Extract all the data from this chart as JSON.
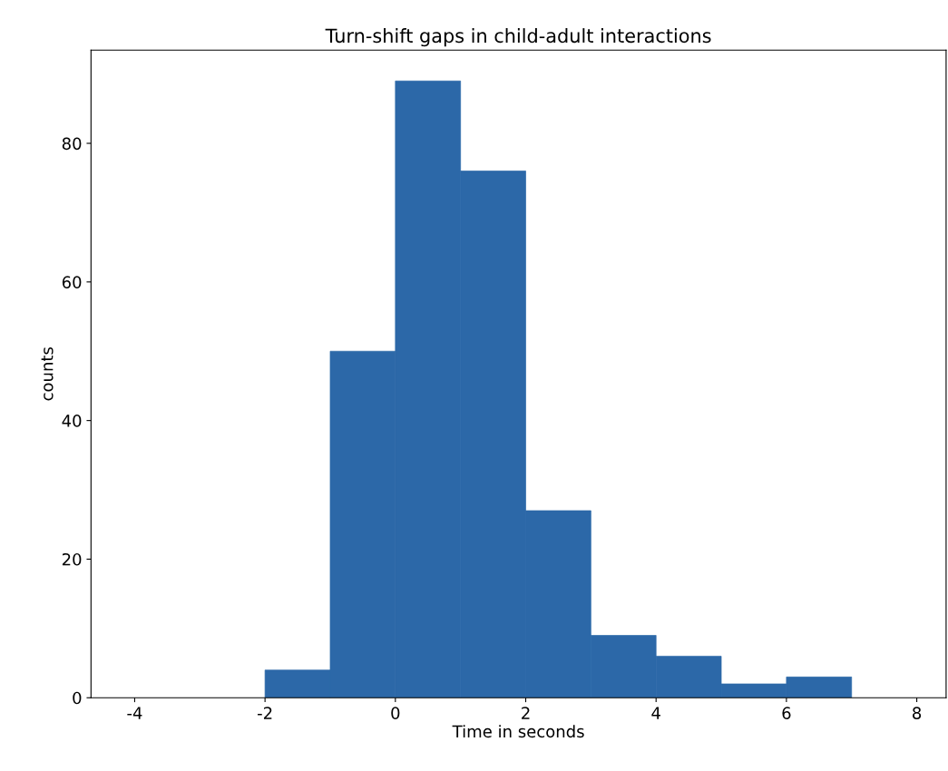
{
  "chart_data": {
    "type": "histogram",
    "title": "Turn-shift gaps in child-adult interactions",
    "xlabel": "Time in seconds",
    "ylabel": "counts",
    "bins": [
      -2,
      -1,
      0,
      1,
      2,
      3,
      4,
      5,
      6,
      7
    ],
    "values": [
      4,
      50,
      89,
      76,
      27,
      9,
      6,
      2,
      3
    ],
    "color": "#2c68a8",
    "xlim": [
      -4.67,
      8.45
    ],
    "xticks": [
      -4,
      -2,
      0,
      2,
      4,
      6,
      8
    ],
    "ylim": [
      0,
      93.45
    ],
    "yticks": [
      0,
      20,
      40,
      60,
      80
    ],
    "grid": false
  }
}
